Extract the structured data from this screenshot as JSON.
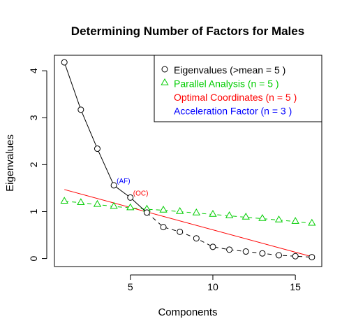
{
  "chart_data": {
    "type": "scatter",
    "title": "Determining Number of Factors for Males",
    "xlabel": "Components",
    "ylabel": "Eigenvalues",
    "xlim": [
      0.4,
      16.6
    ],
    "ylim": [
      -0.17,
      4.33
    ],
    "x_ticks": [
      5,
      10,
      15
    ],
    "y_ticks": [
      0,
      1,
      2,
      3,
      4
    ],
    "legend_position": "top-right",
    "colors": {
      "eigen": "#000000",
      "parallel": "#00CD00",
      "optimal": "#FF0000",
      "acceleration": "#0000FF"
    },
    "series": [
      {
        "name": "Eigenvalues",
        "marker": "circle",
        "line": "solid",
        "x": [
          1,
          2,
          3,
          4,
          5,
          6,
          7,
          8,
          9,
          10,
          11,
          12,
          13,
          14,
          15,
          16
        ],
        "y": [
          4.18,
          3.17,
          2.34,
          1.56,
          1.3,
          0.98,
          0.67,
          0.57,
          0.43,
          0.25,
          0.19,
          0.15,
          0.11,
          0.07,
          0.05,
          0.03
        ]
      },
      {
        "name": "Parallel Analysis",
        "marker": "triangle",
        "line": "dashed",
        "x": [
          1,
          2,
          3,
          4,
          5,
          6,
          7,
          8,
          9,
          10,
          11,
          12,
          13,
          14,
          15,
          16
        ],
        "y": [
          1.22,
          1.19,
          1.15,
          1.11,
          1.08,
          1.05,
          1.03,
          1.0,
          0.97,
          0.94,
          0.91,
          0.88,
          0.85,
          0.82,
          0.79,
          0.75
        ]
      },
      {
        "name": "Optimal Coordinates",
        "marker": "none",
        "line": "solid",
        "x": [
          1,
          16
        ],
        "y": [
          1.47,
          0.04
        ]
      }
    ],
    "annotations": [
      {
        "text": "(AF)",
        "x": 4,
        "y": 1.56,
        "color": "#0000FF"
      },
      {
        "text": "(OC)",
        "x": 5,
        "y": 1.3,
        "color": "#FF0000"
      }
    ],
    "legend": [
      {
        "text": "Eigenvalues (>mean  =  5 )",
        "marker": "circle",
        "color": "#000000"
      },
      {
        "text": "Parallel Analysis (n =  5 )",
        "marker": "triangle",
        "color": "#00CD00"
      },
      {
        "text": "Optimal Coordinates (n =  5 )",
        "marker": "none",
        "color": "#FF0000"
      },
      {
        "text": "Acceleration Factor (n =  3 )",
        "marker": "none",
        "color": "#0000FF"
      }
    ]
  }
}
